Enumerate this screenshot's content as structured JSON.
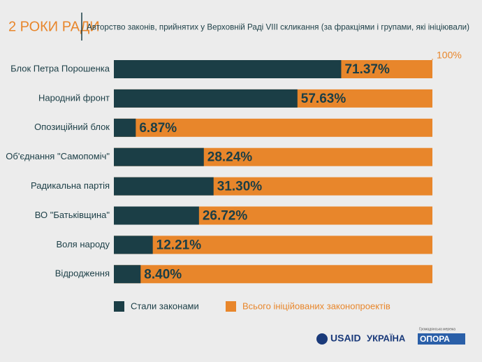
{
  "header": {
    "badge": "2 РОКИ РАДИ"
  },
  "chart_data": {
    "type": "bar",
    "orientation": "horizontal",
    "title": "Авторство законів, прийнятих у Верховній Раді VIII скликання (за фракціями і групами, які ініціювали)",
    "categories": [
      "Блок Петра Порошенка",
      "Народний фронт",
      "Опозиційний блок",
      "Об'єднання \"Самопоміч\"",
      "Радикальна партія",
      "ВО \"Батьківщина\"",
      "Воля народу",
      "Відродження"
    ],
    "series": [
      {
        "name": "Стали законами",
        "color": "#1b3e46",
        "values": [
          71.37,
          57.63,
          6.87,
          28.24,
          31.3,
          26.72,
          12.21,
          8.4
        ],
        "value_labels": [
          "71.37%",
          "57.63%",
          "6.87%",
          "28.24%",
          "31.30%",
          "26.72%",
          "12.21%",
          "8.40%"
        ]
      },
      {
        "name": "Всього ініційованих законопроектів",
        "color": "#e8862b",
        "values": [
          100,
          100,
          100,
          100,
          100,
          100,
          100,
          100
        ]
      }
    ],
    "xlim": [
      0,
      100
    ],
    "xticks": [
      {
        "value": 100,
        "label": "100%"
      }
    ]
  },
  "footer": {
    "usaid": "USAID",
    "ukraine": "УКРАЇНА",
    "network": "Громадянська мережа",
    "opora": "ОПОРА"
  }
}
